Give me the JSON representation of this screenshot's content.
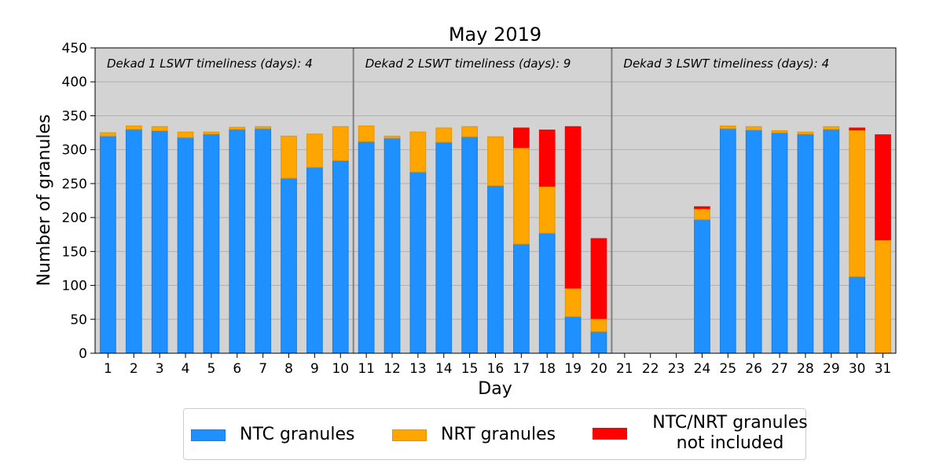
{
  "chart_data": {
    "type": "bar",
    "stacked": true,
    "title": "May 2019",
    "xlabel": "Day",
    "ylabel": "Number of granules",
    "ylim": [
      0,
      450
    ],
    "yticks": [
      0,
      50,
      100,
      150,
      200,
      250,
      300,
      350,
      400,
      450
    ],
    "grid": "horizontal",
    "legend_position": "bottom",
    "categories": [
      "1",
      "2",
      "3",
      "4",
      "5",
      "6",
      "7",
      "8",
      "9",
      "10",
      "11",
      "12",
      "13",
      "14",
      "15",
      "16",
      "17",
      "18",
      "19",
      "20",
      "21",
      "22",
      "23",
      "24",
      "25",
      "26",
      "27",
      "28",
      "29",
      "30",
      "31"
    ],
    "series": [
      {
        "name": "NTC granules",
        "color": "#1e90ff",
        "values": [
          320,
          330,
          328,
          318,
          323,
          330,
          331,
          258,
          274,
          284,
          312,
          317,
          267,
          311,
          319,
          247,
          161,
          177,
          54,
          32,
          0,
          0,
          0,
          197,
          331,
          329,
          325,
          323,
          330,
          113,
          0
        ]
      },
      {
        "name": "NRT granules",
        "color": "#ffa500",
        "values": [
          5,
          5,
          6,
          8,
          3,
          3,
          3,
          62,
          49,
          50,
          23,
          3,
          59,
          21,
          15,
          72,
          142,
          69,
          42,
          19,
          0,
          0,
          0,
          16,
          4,
          5,
          3,
          3,
          4,
          216,
          167
        ]
      },
      {
        "name": "NTC/NRT granules not included",
        "color": "#ff0000",
        "values": [
          0,
          0,
          0,
          0,
          0,
          0,
          0,
          0,
          0,
          0,
          0,
          0,
          0,
          0,
          0,
          0,
          29,
          83,
          238,
          118,
          0,
          0,
          0,
          3,
          0,
          0,
          0,
          0,
          0,
          3,
          155
        ]
      }
    ],
    "dividers_after_day": [
      10,
      20
    ],
    "annotations": [
      "Dekad 1 LSWT timeliness (days): 4",
      "Dekad 2 LSWT timeliness (days): 9",
      "Dekad 3 LSWT timeliness (days): 4"
    ],
    "background_color": "#d3d3d3"
  },
  "legend": {
    "ntc": "NTC granules",
    "nrt": "NRT granules",
    "excluded_line1": "NTC/NRT granules",
    "excluded_line2": "not included"
  }
}
